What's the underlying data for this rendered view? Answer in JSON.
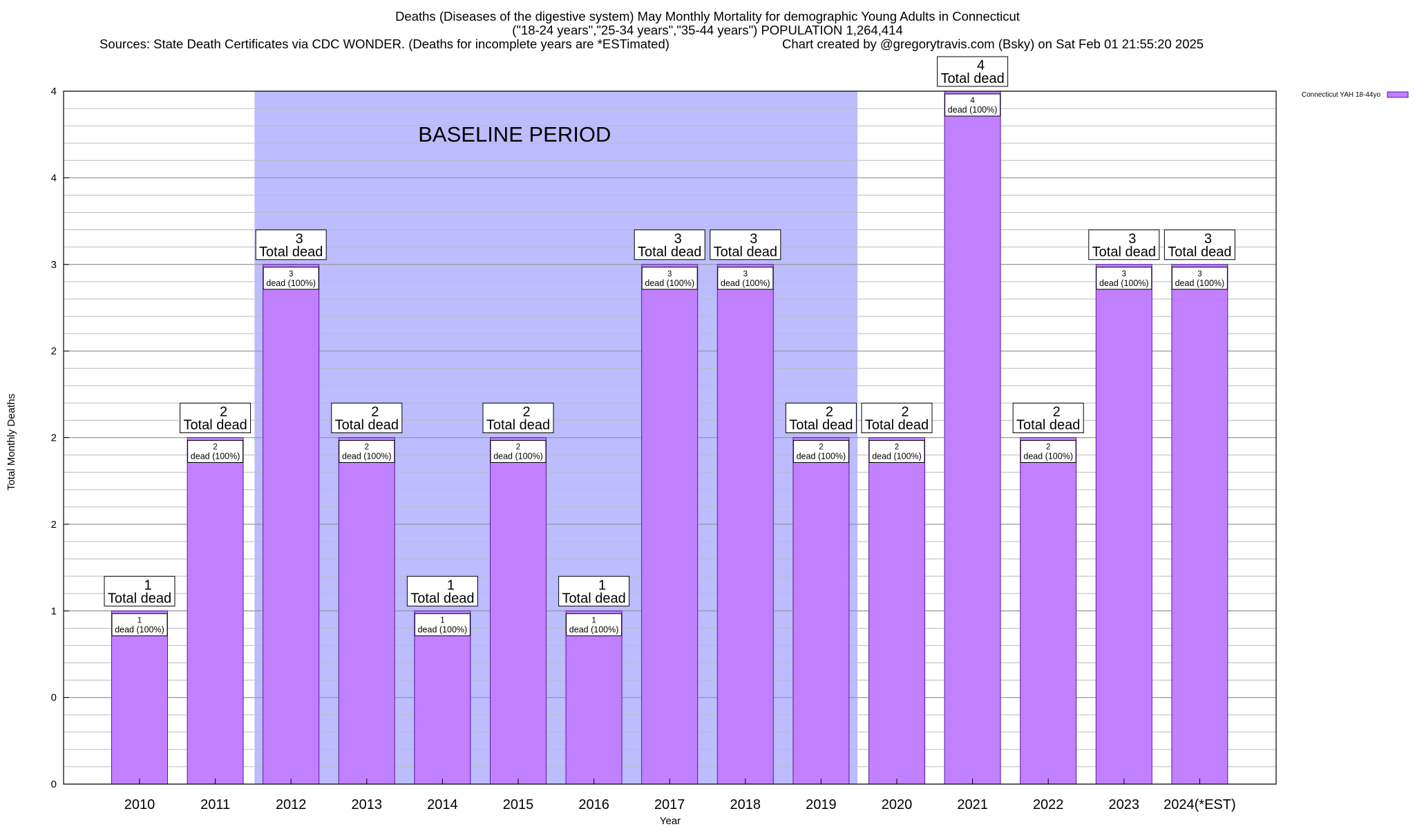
{
  "title": {
    "line1": "Deaths (Diseases of the digestive system) May Monthly Mortality for demographic Young Adults in Connecticut",
    "line2": "(\"18-24 years\",\"25-34 years\",\"35-44 years\") POPULATION 1,264,414",
    "sources": "Sources: State Death Certificates via CDC WONDER. (Deaths for incomplete years are *ESTimated)",
    "credit": "Chart created by @gregorytravis.com (Bsky) on Sat Feb 01 21:55:20 2025"
  },
  "chart_data": {
    "type": "bar",
    "title": "Deaths (Diseases of the digestive system) May Monthly Mortality for demographic Young Adults in Connecticut",
    "xlabel": "Year",
    "ylabel": "Total Monthly Deaths",
    "categories": [
      "2010",
      "2011",
      "2012",
      "2013",
      "2014",
      "2015",
      "2016",
      "2017",
      "2018",
      "2019",
      "2020",
      "2021",
      "2022",
      "2023",
      "2024(*EST)"
    ],
    "series": [
      {
        "name": "Connecticut YAH 18-44yo",
        "values": [
          1,
          2,
          3,
          2,
          1,
          2,
          1,
          3,
          3,
          2,
          2,
          4,
          2,
          3,
          3
        ]
      }
    ],
    "total_labels": [
      "1\nTotal dead",
      "2\nTotal dead",
      "3\nTotal dead",
      "2\nTotal dead",
      "1\nTotal dead",
      "2\nTotal dead",
      "1\nTotal dead",
      "3\nTotal dead",
      "3\nTotal dead",
      "2\nTotal dead",
      "2\nTotal dead",
      "4\nTotal dead",
      "2\nTotal dead",
      "3\nTotal dead",
      "3\nTotal dead"
    ],
    "inner_labels": [
      "1\ndead (100%)",
      "2\ndead (100%)",
      "3\ndead (100%)",
      "2\ndead (100%)",
      "1\ndead (100%)",
      "2\ndead (100%)",
      "1\ndead (100%)",
      "3\ndead (100%)",
      "3\ndead (100%)",
      "2\ndead (100%)",
      "2\ndead (100%)",
      "4\ndead (100%)",
      "2\ndead (100%)",
      "3\ndead (100%)",
      "3\ndead (100%)"
    ],
    "ylim": [
      0,
      4
    ],
    "yticks": [
      0,
      0.5,
      1,
      1.5,
      2,
      2.5,
      3,
      3.5,
      4
    ],
    "ytick_labels": [
      "0",
      "0",
      "1",
      "2",
      "2",
      "2",
      "3",
      "4",
      "4"
    ],
    "y_minor_step": 0.1,
    "baseline_period": {
      "label": "BASELINE PERIOD",
      "from": "2012",
      "to": "2019"
    },
    "grid": true,
    "legend_position": "top-right",
    "colors": {
      "bar": "#c080ff",
      "bar_edge": "#5a1a9a",
      "baseline": "#bcbcff",
      "grid": "#bbbbbb"
    }
  }
}
